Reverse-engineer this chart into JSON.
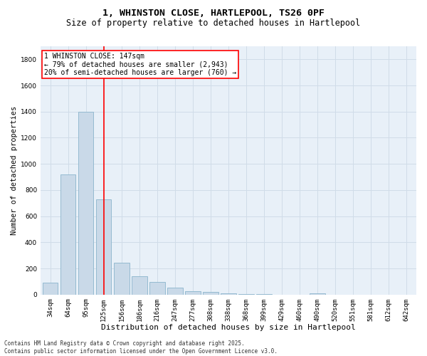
{
  "title_line1": "1, WHINSTON CLOSE, HARTLEPOOL, TS26 0PF",
  "title_line2": "Size of property relative to detached houses in Hartlepool",
  "xlabel": "Distribution of detached houses by size in Hartlepool",
  "ylabel": "Number of detached properties",
  "categories": [
    "34sqm",
    "64sqm",
    "95sqm",
    "125sqm",
    "156sqm",
    "186sqm",
    "216sqm",
    "247sqm",
    "277sqm",
    "308sqm",
    "338sqm",
    "368sqm",
    "399sqm",
    "429sqm",
    "460sqm",
    "490sqm",
    "520sqm",
    "551sqm",
    "581sqm",
    "612sqm",
    "642sqm"
  ],
  "values": [
    90,
    920,
    1400,
    730,
    245,
    140,
    95,
    55,
    25,
    20,
    10,
    5,
    2,
    0,
    0,
    10,
    0,
    0,
    0,
    0,
    0
  ],
  "bar_color": "#c9d9e8",
  "bar_edge_color": "#8ab4cc",
  "vline_index": 3,
  "vline_color": "red",
  "annotation_text": "1 WHINSTON CLOSE: 147sqm\n← 79% of detached houses are smaller (2,943)\n20% of semi-detached houses are larger (760) →",
  "annotation_box_color": "white",
  "annotation_edge_color": "red",
  "ylim": [
    0,
    1900
  ],
  "yticks": [
    0,
    200,
    400,
    600,
    800,
    1000,
    1200,
    1400,
    1600,
    1800
  ],
  "grid_color": "#d0dce8",
  "background_color": "#e8f0f8",
  "footnote": "Contains HM Land Registry data © Crown copyright and database right 2025.\nContains public sector information licensed under the Open Government Licence v3.0.",
  "title_fontsize": 9.5,
  "subtitle_fontsize": 8.5,
  "xlabel_fontsize": 8,
  "ylabel_fontsize": 7.5,
  "tick_fontsize": 6.5,
  "annot_fontsize": 7,
  "footnote_fontsize": 5.5
}
